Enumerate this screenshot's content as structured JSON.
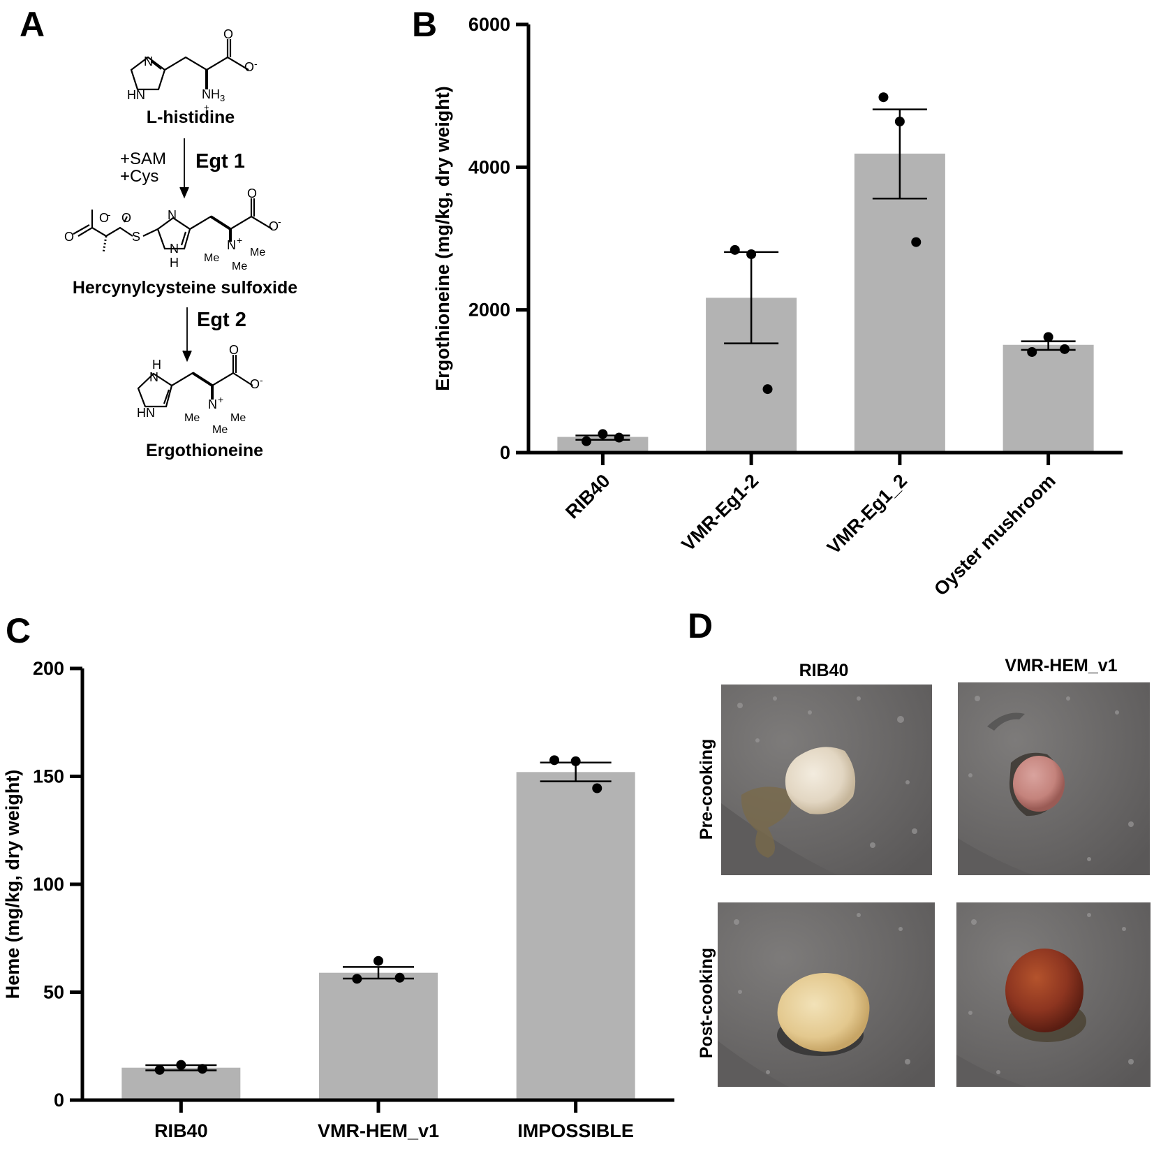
{
  "panel_letters": {
    "a": "A",
    "b": "B",
    "c": "C",
    "d": "D"
  },
  "pathway": {
    "histidine": {
      "name": "L-histidine",
      "labels": [
        "N",
        "HN",
        "O",
        "O",
        "NH",
        "3",
        "+",
        "-"
      ]
    },
    "step1": {
      "enzyme": "Egt 1",
      "reagents": [
        "+SAM",
        "+Cys"
      ]
    },
    "hercynyl": {
      "name": "Hercynylcysteine sulfoxide",
      "labels": [
        "O",
        "O",
        "S",
        "O",
        "N",
        "N",
        "H",
        "O",
        "O",
        "N",
        "Me",
        "Me",
        "Me",
        "-",
        "-",
        "+"
      ]
    },
    "step2": {
      "enzyme": "Egt 2"
    },
    "ergothioneine": {
      "name": "Ergothioneine",
      "labels": [
        "H",
        "N",
        "HN",
        "O",
        "O",
        "N",
        "Me",
        "Me",
        "Me",
        "-",
        "+"
      ]
    }
  },
  "chart_data": [
    {
      "panel": "B",
      "type": "bar",
      "title": "",
      "xlabel": "",
      "ylabel": "Ergothioneine (mg/kg, dry weight)",
      "ylim": [
        0,
        6000
      ],
      "yticks": [
        0,
        2000,
        4000,
        6000
      ],
      "ytick_labels": [
        "0",
        "2000",
        "4000",
        "6000"
      ],
      "categories": [
        "RIB40",
        "VMR-Eg1-2",
        "VMR-Eg1_2",
        "Oyster mushroom"
      ],
      "values": [
        220,
        2170,
        4190,
        1510
      ],
      "error_low": [
        180,
        1530,
        3560,
        1440
      ],
      "error_high": [
        240,
        2810,
        4810,
        1560
      ],
      "points": [
        [
          160,
          260,
          210
        ],
        [
          2840,
          2780,
          890
        ],
        [
          4980,
          4640,
          2950
        ],
        [
          1410,
          1620,
          1450
        ]
      ],
      "bar_color": "#b3b3b3",
      "grid": false
    },
    {
      "panel": "C",
      "type": "bar",
      "title": "",
      "xlabel": "",
      "ylabel": "Heme (mg/kg, dry weight)",
      "ylim": [
        0,
        200
      ],
      "yticks": [
        0,
        50,
        100,
        150,
        200
      ],
      "ytick_labels": [
        "0",
        "50",
        "100",
        "150",
        "200"
      ],
      "categories": [
        "RIB40",
        "VMR-HEM_v1",
        "IMPOSSIBLE"
      ],
      "values": [
        15,
        59,
        152
      ],
      "error_low": [
        13.8,
        56.3,
        147.7
      ],
      "error_high": [
        16.2,
        61.7,
        156.4
      ],
      "points": [
        [
          14,
          16.3,
          14.5
        ],
        [
          56.2,
          64.5,
          56.7
        ],
        [
          157.5,
          157,
          144.5
        ]
      ],
      "bar_color": "#b3b3b3",
      "grid": false
    }
  ],
  "photo_panel": {
    "columns": [
      "RIB40",
      "VMR-HEM_v1"
    ],
    "rows": [
      "Pre-cooking",
      "Post-cooking"
    ]
  },
  "colors": {
    "bar": "#b3b3b3",
    "axis": "#000000",
    "pan": "#6e6c6c",
    "raw_rib40": "#e7ddc9",
    "raw_hem": "#c98c86",
    "cooked_rib40": "#e9d3a0",
    "cooked_hem": "#8e3520"
  }
}
